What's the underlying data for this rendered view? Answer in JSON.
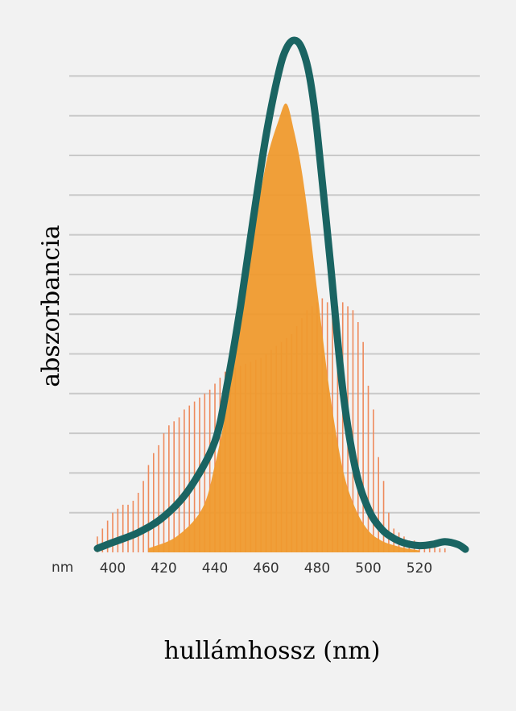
{
  "chart_data": {
    "type": "line",
    "xlabel": "hullámhossz (nm)",
    "ylabel": "abszorbancia",
    "x_unit_label": "nm",
    "xlim": [
      390,
      538
    ],
    "ylim": [
      0,
      13
    ],
    "x_ticks": [
      400,
      420,
      440,
      460,
      480,
      500,
      520
    ],
    "gridlines": [
      1,
      2,
      3,
      4,
      5,
      6,
      7,
      8,
      9,
      10,
      11,
      12
    ],
    "grid": true,
    "series": [
      {
        "kind": "line",
        "color": "#1a6462",
        "x": [
          394,
          400,
          410,
          420,
          430,
          440,
          445,
          450,
          455,
          460,
          465,
          468,
          471,
          474,
          477,
          480,
          485,
          490,
          495,
          500,
          505,
          510,
          515,
          520,
          525,
          530,
          535,
          538
        ],
        "y": [
          0.1,
          0.25,
          0.5,
          0.9,
          1.6,
          2.8,
          4.3,
          6.2,
          8.4,
          10.5,
          12.1,
          12.7,
          12.9,
          12.7,
          12.0,
          10.6,
          7.4,
          4.1,
          2.1,
          1.1,
          0.6,
          0.35,
          0.22,
          0.17,
          0.2,
          0.27,
          0.2,
          0.08
        ]
      },
      {
        "kind": "filled-area",
        "color": "#ef9a2e",
        "x": [
          414,
          425,
          435,
          440,
          445,
          450,
          455,
          460,
          465,
          468,
          471,
          474,
          477,
          480,
          485,
          490,
          495,
          500,
          505,
          510,
          515,
          520
        ],
        "y": [
          0.1,
          0.4,
          1.1,
          2.2,
          3.8,
          5.8,
          7.9,
          9.8,
          10.9,
          11.3,
          10.6,
          9.6,
          8.2,
          6.6,
          4.0,
          2.1,
          1.1,
          0.55,
          0.3,
          0.18,
          0.1,
          0.05
        ]
      },
      {
        "kind": "bars",
        "color": "#ee8a5c",
        "x": [
          394,
          396,
          398,
          400,
          402,
          404,
          406,
          408,
          410,
          412,
          414,
          416,
          418,
          420,
          422,
          424,
          426,
          428,
          430,
          432,
          434,
          436,
          438,
          440,
          442,
          444,
          446,
          448,
          450,
          452,
          454,
          456,
          458,
          460,
          462,
          464,
          466,
          468,
          470,
          472,
          474,
          476,
          478,
          480,
          482,
          484,
          486,
          488,
          490,
          492,
          494,
          496,
          498,
          500,
          502,
          504,
          506,
          508,
          510,
          512,
          514,
          516,
          518,
          520,
          522,
          524,
          526,
          528,
          530
        ],
        "y": [
          0.4,
          0.6,
          0.8,
          1.0,
          1.1,
          1.2,
          1.2,
          1.3,
          1.5,
          1.8,
          2.2,
          2.5,
          2.7,
          3.0,
          3.2,
          3.3,
          3.4,
          3.6,
          3.7,
          3.8,
          3.9,
          4.0,
          4.1,
          4.25,
          4.4,
          4.55,
          4.6,
          4.65,
          4.7,
          4.75,
          4.8,
          4.85,
          4.9,
          5.0,
          5.1,
          5.2,
          5.3,
          5.4,
          5.5,
          5.7,
          5.9,
          6.1,
          6.2,
          6.3,
          6.4,
          6.3,
          6.25,
          6.2,
          6.3,
          6.2,
          6.1,
          5.8,
          5.3,
          4.2,
          3.6,
          2.4,
          1.8,
          1.0,
          0.6,
          0.5,
          0.4,
          0.3,
          0.3,
          0.2,
          0.2,
          0.15,
          0.15,
          0.1,
          0.1
        ]
      }
    ]
  }
}
